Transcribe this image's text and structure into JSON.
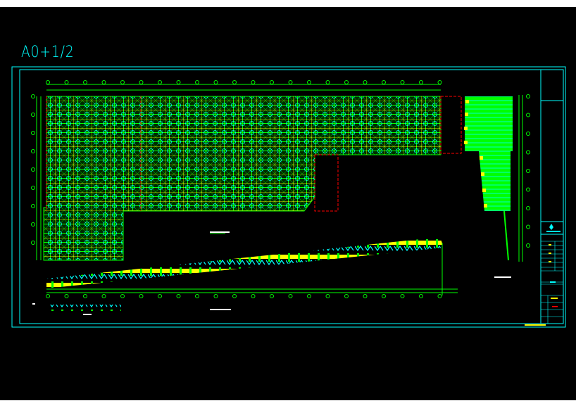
{
  "sheet": {
    "size_label": "A0+1/2"
  },
  "colors": {
    "background": "#000000",
    "frame": "#00ffff",
    "members": "#00ff00",
    "chords": "#ffff00",
    "nodes": "#00ffff",
    "boundary": "#ff0000",
    "text": "#ffffff"
  },
  "drawing": {
    "type": "CAD space-frame structural plan and elevation",
    "title_block": "right-edge-title-block"
  }
}
